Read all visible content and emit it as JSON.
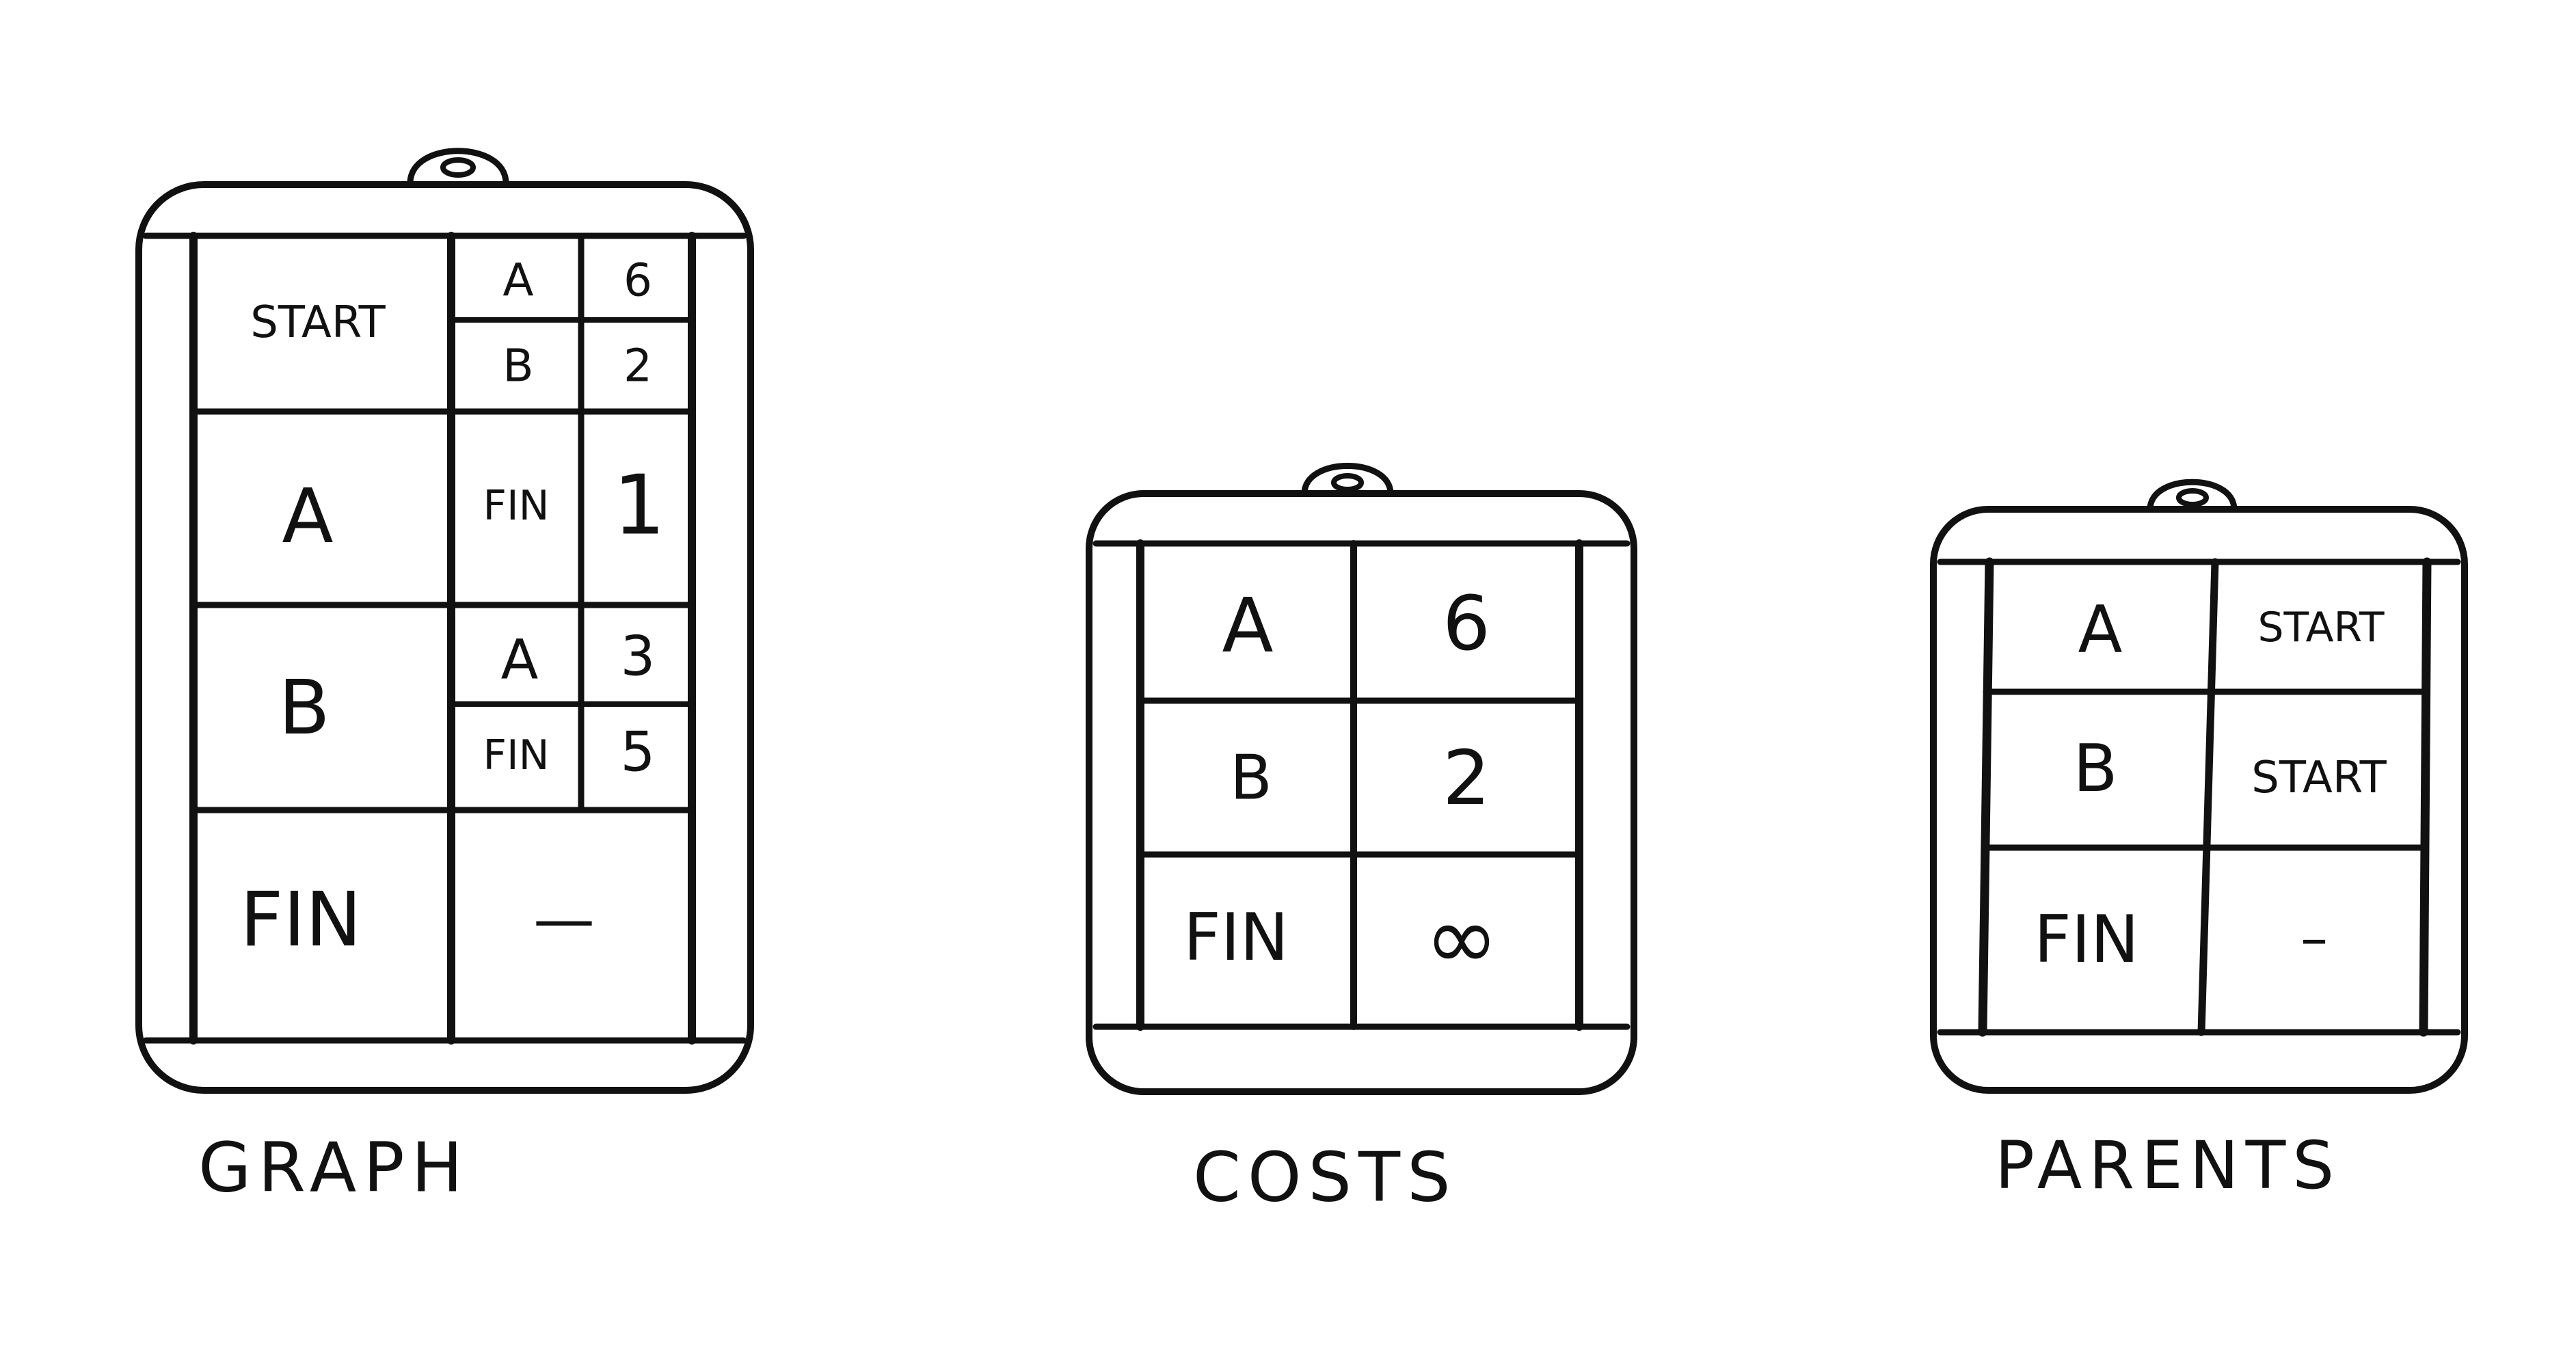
{
  "graph": {
    "label": "GRAPH",
    "rows": [
      {
        "node": "START",
        "neighbors": [
          {
            "name": "A",
            "weight": "6"
          },
          {
            "name": "B",
            "weight": "2"
          }
        ]
      },
      {
        "node": "A",
        "neighbors": [
          {
            "name": "FIN",
            "weight": "1"
          }
        ]
      },
      {
        "node": "B",
        "neighbors": [
          {
            "name": "A",
            "weight": "3"
          },
          {
            "name": "FIN",
            "weight": "5"
          }
        ]
      },
      {
        "node": "FIN",
        "none": "—"
      }
    ]
  },
  "costs": {
    "label": "COSTS",
    "rows": [
      {
        "node": "A",
        "value": "6"
      },
      {
        "node": "B",
        "value": "2"
      },
      {
        "node": "FIN",
        "value": "∞"
      }
    ]
  },
  "parents": {
    "label": "PARENTS",
    "rows": [
      {
        "node": "A",
        "value": "START"
      },
      {
        "node": "B",
        "value": "START"
      },
      {
        "node": "FIN",
        "value": "–"
      }
    ]
  }
}
